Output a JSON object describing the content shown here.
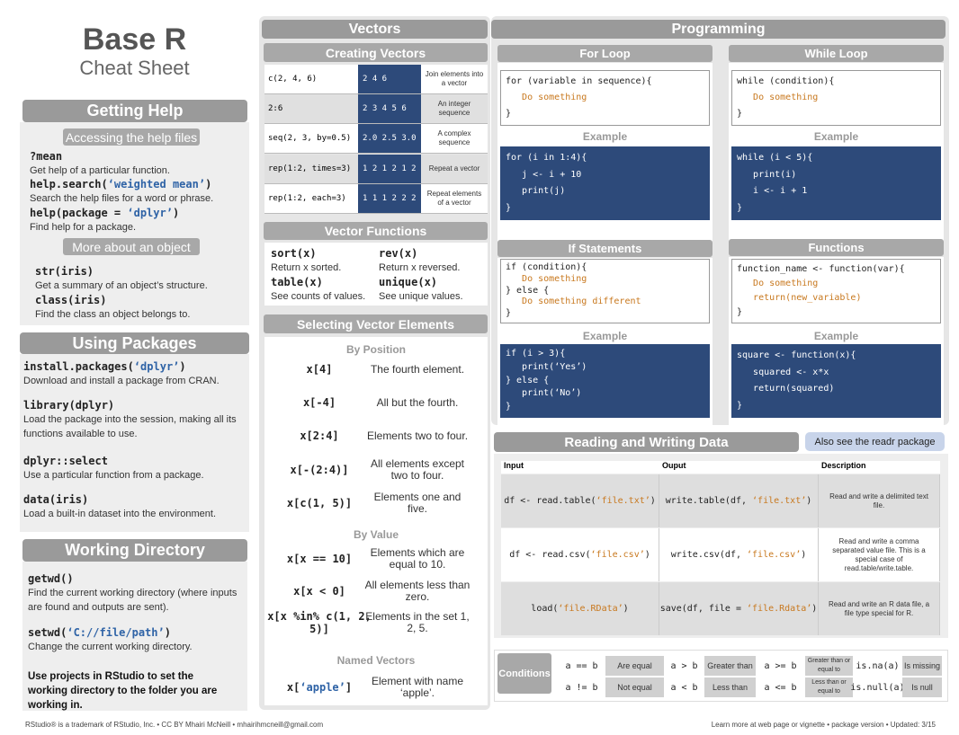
{
  "header": {
    "title": "Base R",
    "subtitle": "Cheat Sheet"
  },
  "getting_help": {
    "title": "Getting Help",
    "accessing": {
      "title": "Accessing the help files",
      "items": [
        {
          "code": "?mean",
          "desc": "Get help of a particular function."
        },
        {
          "code": "help.search(‘weighted mean’)",
          "desc": "Search the help files for a word or phrase."
        },
        {
          "code": "help(package = ‘dplyr’)",
          "desc": "Find help for a package."
        }
      ]
    },
    "object": {
      "title": "More about an object",
      "items": [
        {
          "code": "str(iris)",
          "desc": "Get a summary of an object’s structure."
        },
        {
          "code": "class(iris)",
          "desc": "Find the class an object belongs to."
        }
      ]
    }
  },
  "packages": {
    "title": "Using Packages",
    "items": [
      {
        "code": "install.packages(‘dplyr’)",
        "desc": "Download and install a package from CRAN."
      },
      {
        "code": "library(dplyr)",
        "desc": "Load the package into the session, making all its functions available to use."
      },
      {
        "code": "dplyr::select",
        "desc": "Use a particular function from a package."
      },
      {
        "code": "data(iris)",
        "desc": "Load a built-in dataset into the environment."
      }
    ]
  },
  "working_directory": {
    "title": "Working Directory",
    "items": [
      {
        "code": "getwd()",
        "desc": "Find the current working directory (where inputs are found and outputs are sent)."
      },
      {
        "code": "setwd(‘C://file/path’)",
        "desc": "Change the current working directory."
      }
    ],
    "note": "Use projects in RStudio to set the working directory to the folder you are working in."
  },
  "vectors": {
    "title": "Vectors",
    "creating": {
      "title": "Creating Vectors",
      "rows": [
        [
          "c(2, 4, 6)",
          "2 4 6",
          "Join elements into a vector"
        ],
        [
          "2:6",
          "2 3 4 5 6",
          "An integer sequence"
        ],
        [
          "seq(2, 3, by=0.5)",
          "2.0 2.5 3.0",
          "A complex sequence"
        ],
        [
          "rep(1:2, times=3)",
          "1 2 1 2 1 2",
          "Repeat a vector"
        ],
        [
          "rep(1:2, each=3)",
          "1 1 1 2 2 2",
          "Repeat elements of a vector"
        ]
      ]
    },
    "functions": {
      "title": "Vector Functions",
      "items": [
        {
          "code": "sort(x)",
          "desc": "Return x sorted."
        },
        {
          "code": "rev(x)",
          "desc": "Return x reversed."
        },
        {
          "code": "table(x)",
          "desc": "See counts of values."
        },
        {
          "code": "unique(x)",
          "desc": "See unique values."
        }
      ]
    },
    "selecting": {
      "title": "Selecting Vector Elements",
      "groups": [
        {
          "title": "By Position",
          "rows": [
            [
              "x[4]",
              "The fourth element."
            ],
            [
              "x[-4]",
              "All but the fourth."
            ],
            [
              "x[2:4]",
              "Elements two to four."
            ],
            [
              "x[-(2:4)]",
              "All elements except two to four."
            ],
            [
              "x[c(1, 5)]",
              "Elements one and five."
            ]
          ]
        },
        {
          "title": "By Value",
          "rows": [
            [
              "x[x == 10]",
              "Elements which are equal to 10."
            ],
            [
              "x[x < 0]",
              "All elements less than zero."
            ],
            [
              "x[x %in% c(1, 2, 5)]",
              "Elements in the set 1, 2, 5."
            ]
          ]
        },
        {
          "title": "Named Vectors",
          "rows": [
            [
              "x[‘apple’]",
              "Element with name ‘apple’."
            ]
          ]
        }
      ]
    }
  },
  "programming": {
    "title": "Programming",
    "blocks": [
      {
        "title": "For Loop",
        "syntax": [
          "for (variable in sequence){",
          "   Do something",
          "}"
        ],
        "example_label": "Example",
        "example": [
          "for (i in 1:4){",
          "   j <- i + 10",
          "   print(j)",
          "}"
        ]
      },
      {
        "title": "While Loop",
        "syntax": [
          "while (condition){",
          "   Do something",
          "}"
        ],
        "example_label": "Example",
        "example": [
          "while (i < 5){",
          "   print(i)",
          "   i <- i + 1",
          "}"
        ]
      },
      {
        "title": "If Statements",
        "syntax": [
          "if (condition){",
          "   Do something",
          "} else {",
          "   Do something different",
          "}"
        ],
        "example_label": "Example",
        "example": [
          "if (i > 3){",
          "   print(‘Yes’)",
          "} else {",
          "   print(‘No’)",
          "}"
        ]
      },
      {
        "title": "Functions",
        "syntax": [
          "function_name <- function(var){",
          "   Do something",
          "   return(new_variable)",
          "}"
        ],
        "example_label": "Example",
        "example": [
          "square <- function(x){",
          "   squared <- x*x",
          "   return(squared)",
          "}"
        ]
      }
    ]
  },
  "io": {
    "title": "Reading and Writing Data",
    "see_also": "Also see the readr package",
    "columns": [
      "Input",
      "Ouput",
      "Description"
    ],
    "rows": [
      [
        "df <- read.table(‘file.txt’)",
        "write.table(df, ‘file.txt’)",
        "Read and write a delimited text file."
      ],
      [
        "df <- read.csv(‘file.csv’)",
        "write.csv(df, ‘file.csv’)",
        "Read and write a comma separated value file. This is a special case of read.table/write.table."
      ],
      [
        "load(‘file.RData’)",
        "save(df, file = ‘file.Rdata’)",
        "Read and write an R data file, a file type special for R."
      ]
    ]
  },
  "conditions": {
    "title": "Conditions",
    "rows": [
      [
        [
          "a == b",
          "Are equal"
        ],
        [
          "a > b",
          "Greater than"
        ],
        [
          "a >= b",
          "Greater than or equal to"
        ],
        [
          "is.na(a)",
          "Is missing"
        ]
      ],
      [
        [
          "a != b",
          "Not equal"
        ],
        [
          "a < b",
          "Less than"
        ],
        [
          "a <= b",
          "Less than or equal to"
        ],
        [
          "is.null(a)",
          "Is null"
        ]
      ]
    ]
  },
  "footer": {
    "left": "RStudio® is a trademark of RStudio, Inc. • CC BY Mhairi McNeill • mhairihmcneill@gmail.com",
    "right": "Learn more at web page or vignette • package version • Updated: 3/15"
  }
}
